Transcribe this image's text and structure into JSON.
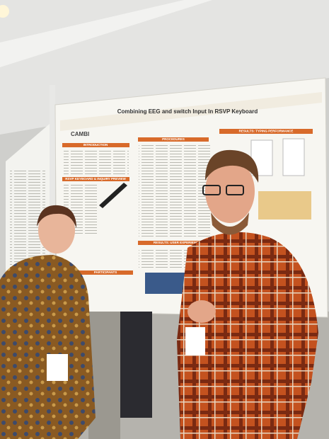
{
  "poster": {
    "title": "Combining EEG and switch Input In RSVP Keyboard",
    "logo": "CAMBI",
    "sections": [
      "INTRODUCTION",
      "PROCEDURES",
      "RESULTS: TYPING PERFORMANCE",
      "RSVP KEYBOARD & INQUIRY PREVIEW",
      "RESULTS: USER EXPERIENCE",
      "PARTICIPANTS"
    ]
  }
}
